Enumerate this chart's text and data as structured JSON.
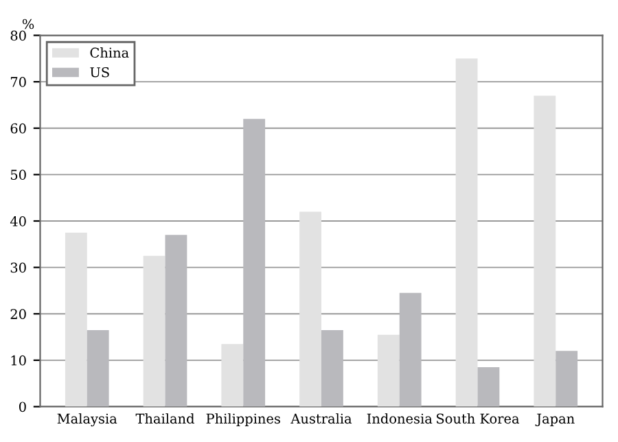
{
  "chart_data": {
    "type": "bar",
    "ylabel": "%",
    "categories": [
      "Malaysia",
      "Thailand",
      "Philippines",
      "Australia",
      "Indonesia",
      "South Korea",
      "Japan"
    ],
    "series": [
      {
        "name": "China",
        "color": "#e2e2e2",
        "values": [
          37.5,
          32.5,
          13.5,
          42,
          15.5,
          75,
          67
        ]
      },
      {
        "name": "US",
        "color": "#b9b9bd",
        "values": [
          16.5,
          37,
          62,
          16.5,
          24.5,
          8.5,
          12
        ]
      }
    ],
    "ylim": [
      0,
      80
    ],
    "yticks": [
      0,
      10,
      20,
      30,
      40,
      50,
      60,
      70,
      80
    ],
    "grid": "y",
    "legend": "top left"
  }
}
